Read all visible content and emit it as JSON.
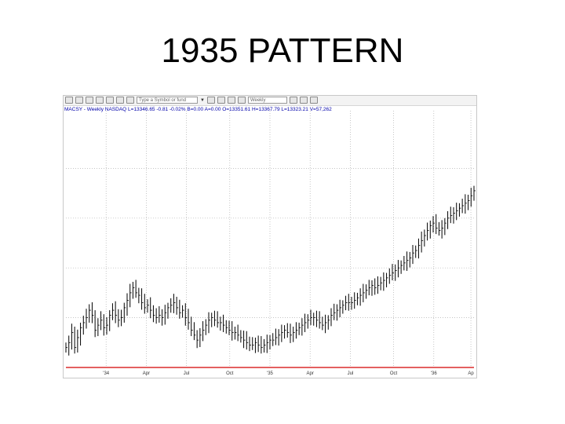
{
  "slide": {
    "title": "1935 PATTERN"
  },
  "toolbar": {
    "symbol_field": "Type a Symbol or fund",
    "period_field": "Weekly",
    "icons": [
      "open-icon",
      "save-icon",
      "print-icon",
      "copy-icon",
      "paste-icon",
      "zoom-in-icon",
      "zoom-out-icon",
      "cursor-icon",
      "crosshair-icon",
      "draw-icon",
      "refresh-icon",
      "settings-icon",
      "indicator-icon",
      "color-icon"
    ]
  },
  "info": {
    "text": "MACSY - Weekly NASDAQ  L=13346.65  -0.81  -0.02%  B=0.00  A=0.00  O=13351.61  H=13367.79  L=13323.21  V=57,262"
  },
  "colors": {
    "bars": "#000000",
    "baseline": "#d40000",
    "grid": "#b0b0b0"
  },
  "chart_data": {
    "type": "ohlc",
    "title": "1935 PATTERN",
    "xlabel": "",
    "ylabel": "",
    "x_tick_labels": [
      "'34",
      "Apr",
      "Jul",
      "Oct",
      "'35",
      "Apr",
      "Jul",
      "Oct",
      "'36",
      "Ap"
    ],
    "x_tick_positions": [
      13,
      26,
      39,
      53,
      66,
      79,
      92,
      106,
      119,
      131
    ],
    "x_range": [
      0,
      132
    ],
    "y_range": [
      0,
      100
    ],
    "y_scale_printed": false,
    "grid": true,
    "baseline": true,
    "series": [
      {
        "closes": [
          8,
          10,
          14,
          8,
          12,
          16,
          18,
          20,
          23,
          21,
          15,
          17,
          19,
          16,
          17,
          21,
          23,
          21,
          19,
          20,
          24,
          27,
          30,
          32,
          30,
          29,
          26,
          24,
          25,
          23,
          21,
          20,
          21,
          20,
          22,
          24,
          25,
          26,
          24,
          22,
          23,
          20,
          18,
          15,
          13,
          11,
          13,
          15,
          17,
          19,
          20,
          19,
          18,
          18,
          17,
          16,
          15,
          14,
          14,
          13,
          12,
          11,
          10,
          9,
          9,
          10,
          9,
          8,
          9,
          10,
          11,
          11,
          12,
          13,
          14,
          15,
          14,
          13,
          14,
          15,
          16,
          17,
          18,
          19,
          20,
          20,
          19,
          18,
          17,
          18,
          19,
          21,
          22,
          23,
          24,
          25,
          26,
          26,
          26,
          27,
          28,
          29,
          30,
          31,
          32,
          33,
          32,
          33,
          34,
          35,
          36,
          37,
          38,
          39,
          40,
          41,
          42,
          43,
          44,
          46,
          47,
          49,
          51,
          53,
          55,
          57,
          58,
          56,
          55,
          56,
          58,
          60,
          61,
          62,
          63,
          64,
          65,
          66,
          67,
          69,
          71
        ],
        "note": "relative price trace, values read as % of plot height"
      }
    ]
  }
}
